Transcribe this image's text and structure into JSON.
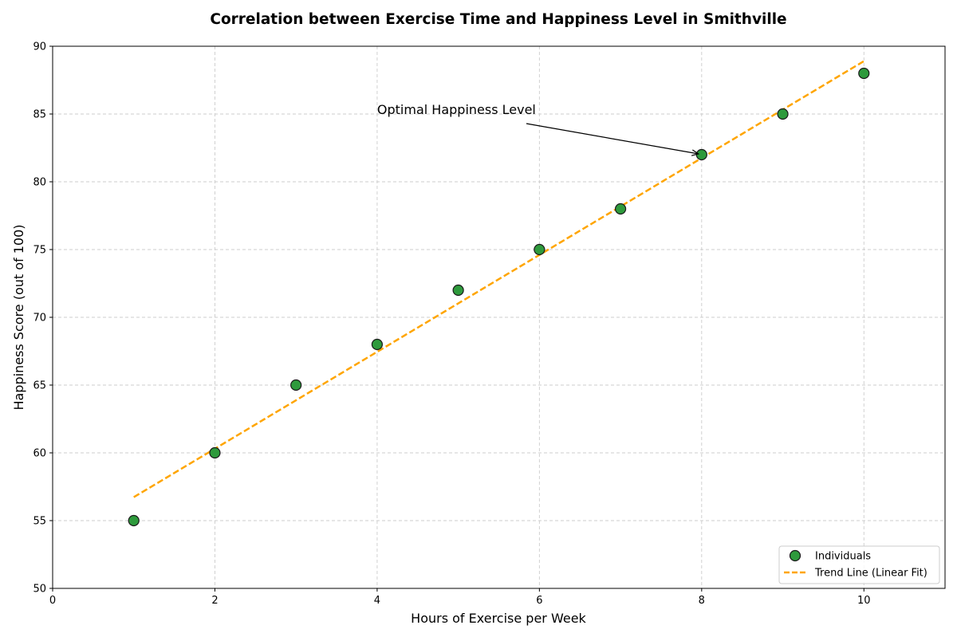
{
  "chart_data": {
    "type": "scatter",
    "title": "Correlation between Exercise Time and Happiness Level in Smithville",
    "xlabel": "Hours of Exercise per Week",
    "ylabel": "Happiness Score (out of 100)",
    "xlim": [
      0,
      11
    ],
    "ylim": [
      50,
      90
    ],
    "xticks": [
      0,
      2,
      4,
      6,
      8,
      10
    ],
    "yticks": [
      50,
      55,
      60,
      65,
      70,
      75,
      80,
      85,
      90
    ],
    "grid": true,
    "legend_position": "lower-right",
    "series": [
      {
        "name": "Individuals",
        "kind": "scatter",
        "color": "#2e9a3c",
        "edge_color": "#1a1a1a",
        "x": [
          1,
          2,
          3,
          4,
          5,
          6,
          7,
          8,
          9,
          10
        ],
        "y": [
          55,
          60,
          65,
          68,
          72,
          75,
          78,
          82,
          85,
          88
        ]
      },
      {
        "name": "Trend Line (Linear Fit)",
        "kind": "line",
        "style": "dashed",
        "color": "#ffa500",
        "x": [
          1,
          10
        ],
        "y": [
          56.73,
          88.9
        ]
      }
    ],
    "annotations": [
      {
        "text": "Optimal Happiness Level",
        "target_x": 8,
        "target_y": 82,
        "text_x": 4,
        "text_y": 85
      }
    ]
  }
}
